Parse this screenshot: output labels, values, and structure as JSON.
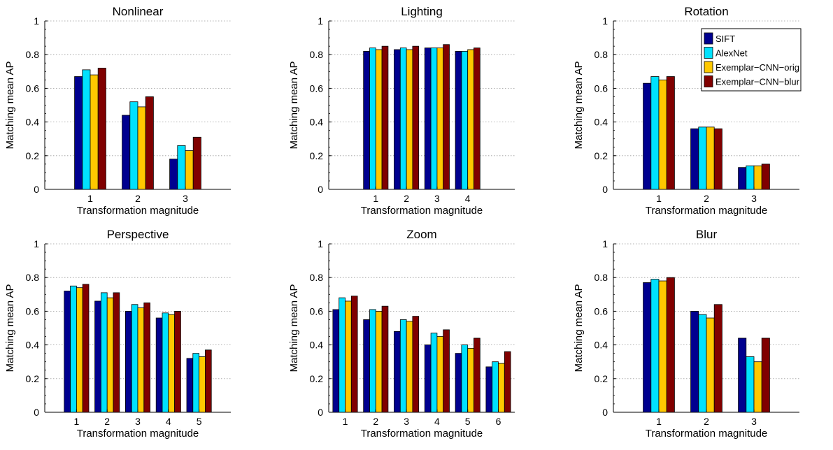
{
  "colors": {
    "series": [
      "#00008f",
      "#00e1fe",
      "#ffc800",
      "#800000"
    ]
  },
  "legend": {
    "entries": [
      "SIFT",
      "AlexNet",
      "Exemplar−CNN−orig",
      "Exemplar−CNN−blur"
    ],
    "placement": "top-right of Rotation panel"
  },
  "chart_data": [
    {
      "type": "bar",
      "title": "Nonlinear",
      "xlabel": "Transformation magnitude",
      "ylabel": "Matching mean AP",
      "ylim": [
        0,
        1
      ],
      "yticks": [
        "0",
        "0.2",
        "0.4",
        "0.6",
        "0.8",
        "1"
      ],
      "grid": true,
      "categories": [
        "1",
        "2",
        "3"
      ],
      "series": [
        {
          "name": "SIFT",
          "values": [
            0.67,
            0.44,
            0.18
          ]
        },
        {
          "name": "AlexNet",
          "values": [
            0.71,
            0.52,
            0.26
          ]
        },
        {
          "name": "Exemplar−CNN−orig",
          "values": [
            0.68,
            0.49,
            0.23
          ]
        },
        {
          "name": "Exemplar−CNN−blur",
          "values": [
            0.72,
            0.55,
            0.31
          ]
        }
      ]
    },
    {
      "type": "bar",
      "title": "Lighting",
      "xlabel": "Transformation magnitude",
      "ylabel": "Matching mean AP",
      "ylim": [
        0,
        1
      ],
      "yticks": [
        "0",
        "0.2",
        "0.4",
        "0.6",
        "0.8",
        "1"
      ],
      "grid": true,
      "categories": [
        "1",
        "2",
        "3",
        "4"
      ],
      "series": [
        {
          "name": "SIFT",
          "values": [
            0.82,
            0.83,
            0.84,
            0.82
          ]
        },
        {
          "name": "AlexNet",
          "values": [
            0.84,
            0.84,
            0.84,
            0.82
          ]
        },
        {
          "name": "Exemplar−CNN−orig",
          "values": [
            0.83,
            0.83,
            0.84,
            0.83
          ]
        },
        {
          "name": "Exemplar−CNN−blur",
          "values": [
            0.85,
            0.85,
            0.86,
            0.84
          ]
        }
      ]
    },
    {
      "type": "bar",
      "title": "Rotation",
      "xlabel": "Transformation magnitude",
      "ylabel": "Matching mean AP",
      "ylim": [
        0,
        1
      ],
      "yticks": [
        "0",
        "0.2",
        "0.4",
        "0.6",
        "0.8",
        "1"
      ],
      "grid": true,
      "categories": [
        "1",
        "2",
        "3"
      ],
      "series": [
        {
          "name": "SIFT",
          "values": [
            0.63,
            0.36,
            0.13
          ]
        },
        {
          "name": "AlexNet",
          "values": [
            0.67,
            0.37,
            0.14
          ]
        },
        {
          "name": "Exemplar−CNN−orig",
          "values": [
            0.65,
            0.37,
            0.14
          ]
        },
        {
          "name": "Exemplar−CNN−blur",
          "values": [
            0.67,
            0.36,
            0.15
          ]
        }
      ]
    },
    {
      "type": "bar",
      "title": "Perspective",
      "xlabel": "Transformation magnitude",
      "ylabel": "Matching mean AP",
      "ylim": [
        0,
        1
      ],
      "yticks": [
        "0",
        "0.2",
        "0.4",
        "0.6",
        "0.8",
        "1"
      ],
      "grid": true,
      "categories": [
        "1",
        "2",
        "3",
        "4",
        "5"
      ],
      "series": [
        {
          "name": "SIFT",
          "values": [
            0.72,
            0.66,
            0.6,
            0.56,
            0.32
          ]
        },
        {
          "name": "AlexNet",
          "values": [
            0.75,
            0.71,
            0.64,
            0.59,
            0.35
          ]
        },
        {
          "name": "Exemplar−CNN−orig",
          "values": [
            0.74,
            0.68,
            0.62,
            0.58,
            0.33
          ]
        },
        {
          "name": "Exemplar−CNN−blur",
          "values": [
            0.76,
            0.71,
            0.65,
            0.6,
            0.37
          ]
        }
      ]
    },
    {
      "type": "bar",
      "title": "Zoom",
      "xlabel": "Transformation magnitude",
      "ylabel": "Matching mean AP",
      "ylim": [
        0,
        1
      ],
      "yticks": [
        "0",
        "0.2",
        "0.4",
        "0.6",
        "0.8",
        "1"
      ],
      "grid": true,
      "categories": [
        "1",
        "2",
        "3",
        "4",
        "5",
        "6"
      ],
      "series": [
        {
          "name": "SIFT",
          "values": [
            0.61,
            0.55,
            0.48,
            0.4,
            0.35,
            0.27
          ]
        },
        {
          "name": "AlexNet",
          "values": [
            0.68,
            0.61,
            0.55,
            0.47,
            0.4,
            0.3
          ]
        },
        {
          "name": "Exemplar−CNN−orig",
          "values": [
            0.66,
            0.6,
            0.54,
            0.45,
            0.38,
            0.29
          ]
        },
        {
          "name": "Exemplar−CNN−blur",
          "values": [
            0.69,
            0.63,
            0.57,
            0.49,
            0.44,
            0.36
          ]
        }
      ]
    },
    {
      "type": "bar",
      "title": "Blur",
      "xlabel": "Transformation magnitude",
      "ylabel": "Matching mean AP",
      "ylim": [
        0,
        1
      ],
      "yticks": [
        "0",
        "0.2",
        "0.4",
        "0.6",
        "0.8",
        "1"
      ],
      "grid": true,
      "categories": [
        "1",
        "2",
        "3"
      ],
      "series": [
        {
          "name": "SIFT",
          "values": [
            0.77,
            0.6,
            0.44
          ]
        },
        {
          "name": "AlexNet",
          "values": [
            0.79,
            0.58,
            0.33
          ]
        },
        {
          "name": "Exemplar−CNN−orig",
          "values": [
            0.78,
            0.56,
            0.3
          ]
        },
        {
          "name": "Exemplar−CNN−blur",
          "values": [
            0.8,
            0.64,
            0.44
          ]
        }
      ]
    }
  ]
}
